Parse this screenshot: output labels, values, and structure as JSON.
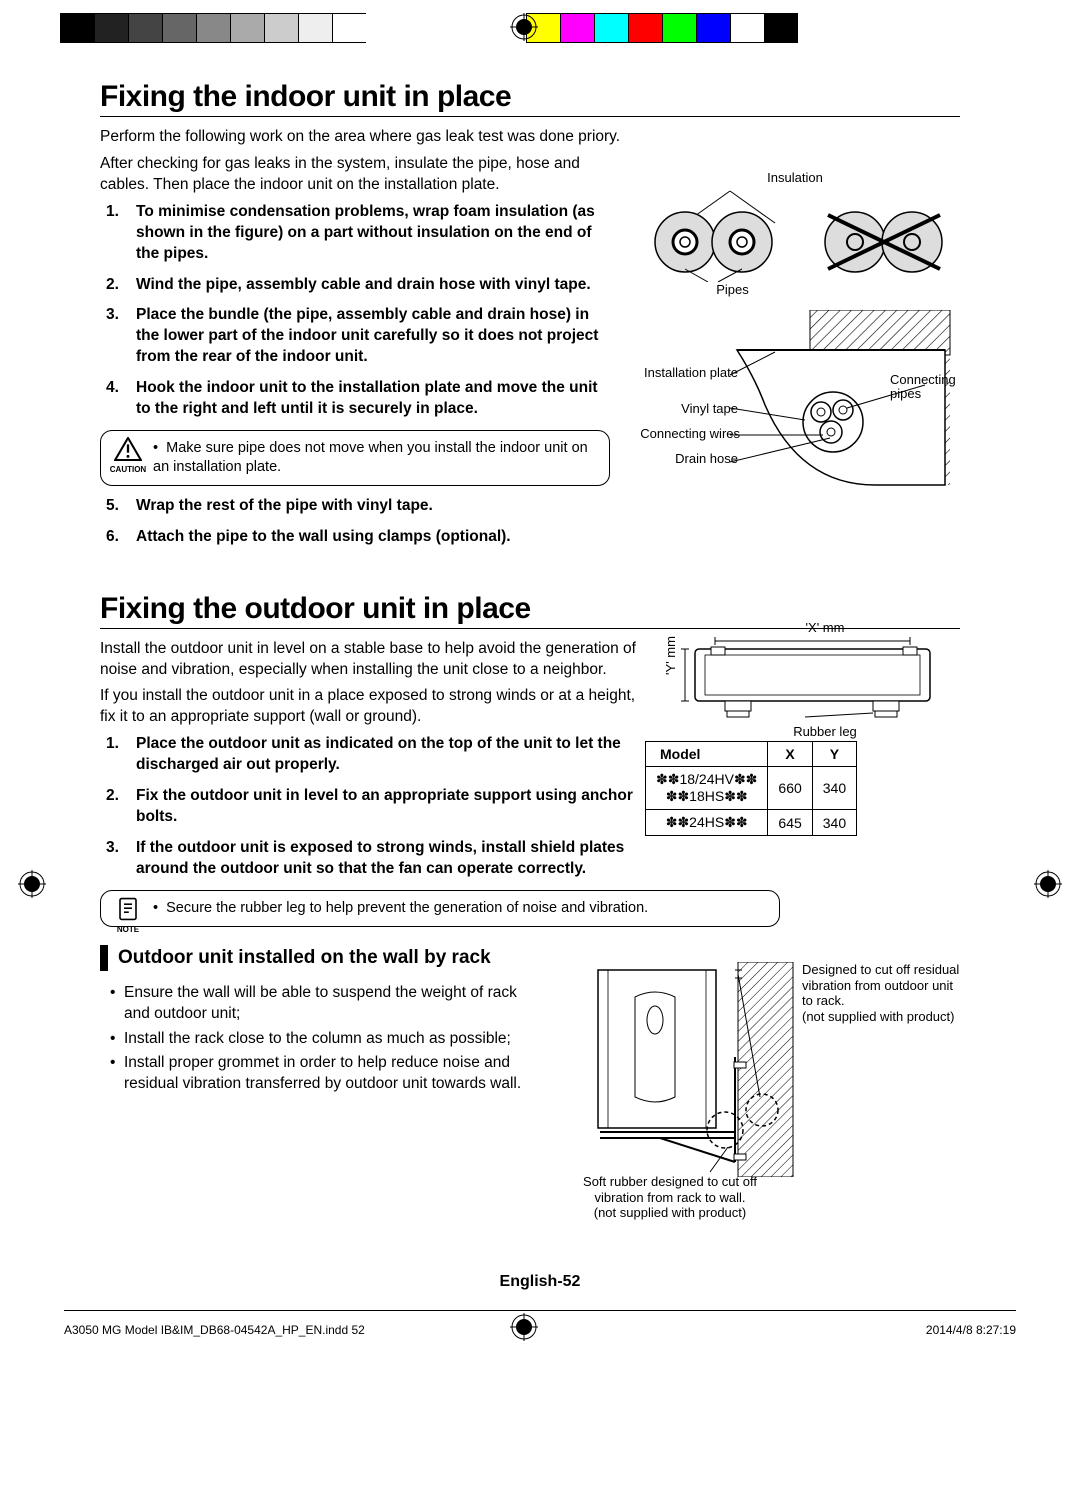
{
  "colorbar": {
    "grays": [
      "#000000",
      "#222222",
      "#444444",
      "#666666",
      "#888888",
      "#aaaaaa",
      "#cccccc",
      "#eeeeee",
      "#ffffff"
    ],
    "colors": [
      "#ffff00",
      "#ff00ff",
      "#00ffff",
      "#ff0000",
      "#00ff00",
      "#0000ff",
      "#ffffff",
      "#000000"
    ],
    "swatch_w": 34
  },
  "section1": {
    "title": "Fixing the indoor unit in place",
    "p1": "Perform the following work on the area where gas leak test was done priory.",
    "p2": "After checking for gas leaks in the system, insulate the pipe, hose and cables. Then place the indoor unit on the installation plate.",
    "steps14": [
      "To minimise condensation problems, wrap foam insulation (as shown in the figure) on a part without insulation on the end of the pipes.",
      "Wind the pipe, assembly cable and drain hose with vinyl tape.",
      "Place the bundle (the pipe, assembly cable and drain hose) in the lower part of the indoor unit carefully so it does not project from the rear of the indoor unit.",
      "Hook the indoor unit to the installation plate and move the unit to the right and left until it is securely in place."
    ],
    "caution": "Make sure pipe does not move when you install the indoor unit on an installation plate.",
    "caution_label": "CAUTION",
    "steps56": [
      "Wrap the rest of the pipe with vinyl tape.",
      "Attach the pipe to the wall using clamps (optional)."
    ],
    "fig1": {
      "insulation": "Insulation",
      "pipes": "Pipes"
    },
    "fig2": {
      "installation_plate": "Installation plate",
      "vinyl_tape": "Vinyl tape",
      "connecting_wires": "Connecting wires",
      "drain_hose": "Drain hose",
      "connecting_pipes": "Connecting pipes"
    }
  },
  "section2": {
    "title": "Fixing the outdoor unit in place",
    "p1": "Install the outdoor unit in level on a stable base to help avoid the generation of noise and vibration, especially when installing the unit close to a neighbor.",
    "p2": "If you install the outdoor unit in a place exposed to strong winds or at a height, fix it to an appropriate support (wall or ground).",
    "steps": [
      "Place the outdoor unit as indicated on the top of the unit to let the discharged air out properly.",
      "Fix the outdoor unit in level to an appropriate support using anchor bolts.",
      "If the outdoor unit is exposed to strong winds, install shield plates around the outdoor unit so that the fan can operate correctly."
    ],
    "note": "Secure the rubber leg to help prevent the generation of noise and vibration.",
    "note_label": "NOTE",
    "fig": {
      "x": "'X' mm",
      "y": "'Y' mm",
      "rubber_leg": "Rubber leg"
    },
    "table": {
      "headers": [
        "Model",
        "X",
        "Y"
      ],
      "rows": [
        {
          "model_lines": [
            "✽✽18/24HV✽✽",
            "✽✽18HS✽✽"
          ],
          "x": "660",
          "y": "340"
        },
        {
          "model_lines": [
            "✽✽24HS✽✽"
          ],
          "x": "645",
          "y": "340"
        }
      ]
    }
  },
  "section3": {
    "heading": "Outdoor unit installed on the wall by rack",
    "bullets": [
      "Ensure the wall will be able to suspend the weight of rack and outdoor unit;",
      "Install the rack close to the column as much as possible;",
      "Install proper grommet in order to help reduce noise and residual vibration transferred by outdoor unit towards wall."
    ],
    "fig": {
      "top_label": "Designed to cut off residual vibration from outdoor unit to rack.\n(not supplied with product)",
      "bottom_label": "Soft rubber designed to cut off vibration from rack to wall.\n(not supplied with product)"
    }
  },
  "footer": {
    "page": "English-52",
    "file": "A3050 MG Model IB&IM_DB68-04542A_HP_EN.indd   52",
    "date": "2014/4/8   8:27:19"
  }
}
